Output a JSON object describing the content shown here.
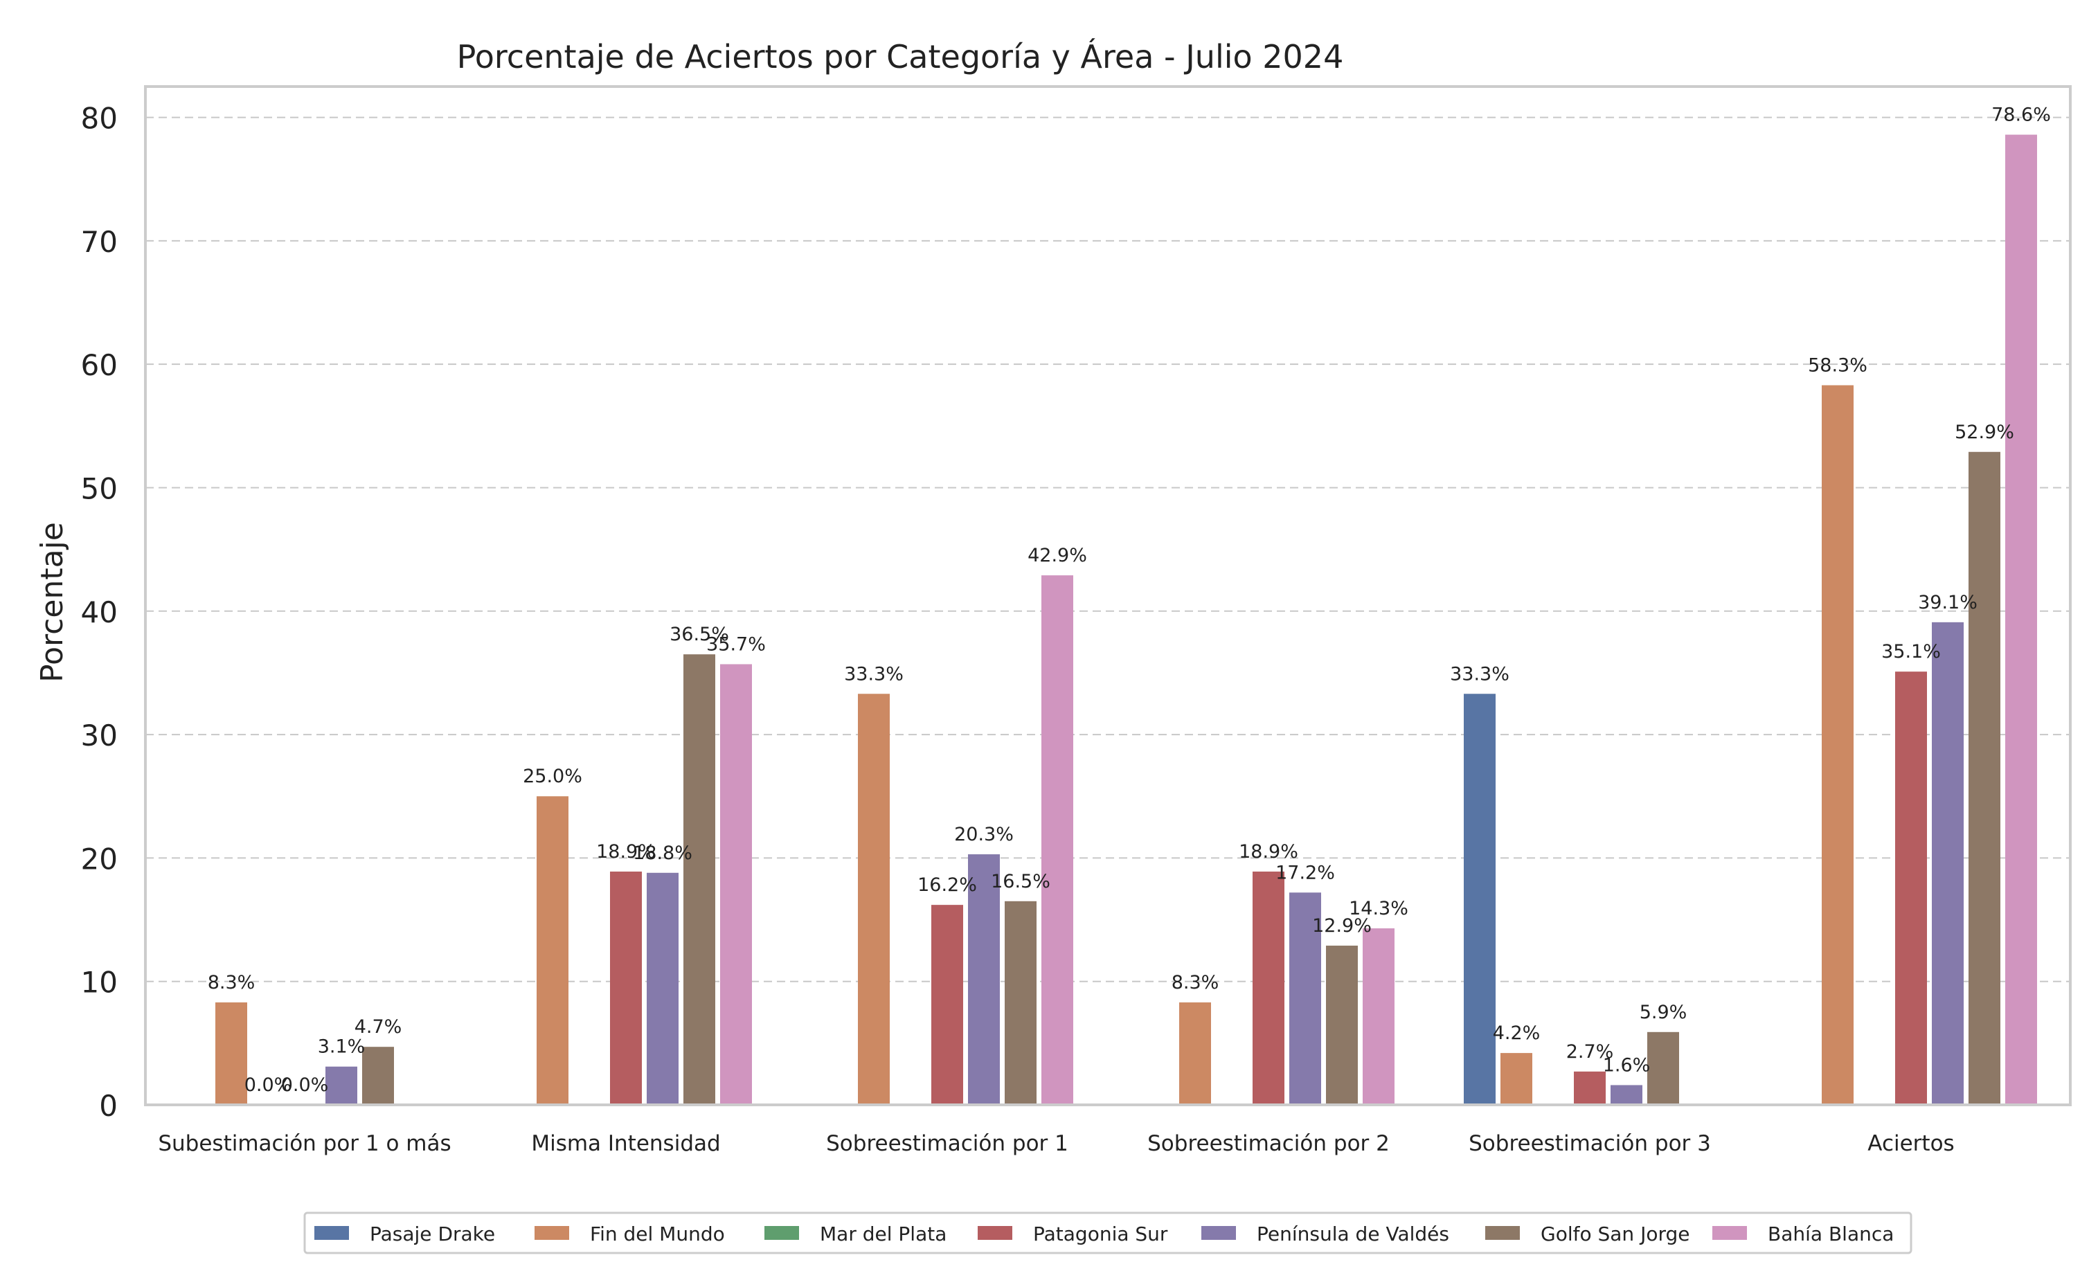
{
  "chart_data": {
    "type": "bar",
    "title": "Porcentaje de Aciertos por Categoría y Área - Julio 2024",
    "xlabel": "",
    "ylabel": "Porcentaje",
    "ylim": [
      0,
      82.5
    ],
    "yticks": [
      0,
      10,
      20,
      30,
      40,
      50,
      60,
      70,
      80
    ],
    "grid": true,
    "legend_position": "bottom-center",
    "categories": [
      "Subestimación por 1 o más",
      "Misma Intensidad",
      "Sobreestimación por 1",
      "Sobreestimación por 2",
      "Sobreestimación por 3",
      "Aciertos"
    ],
    "series": [
      {
        "name": "Pasaje Drake",
        "color": "#5875a4",
        "values": [
          null,
          null,
          null,
          null,
          33.3,
          null
        ],
        "labels": [
          "",
          "",
          "",
          "",
          "33.3%",
          ""
        ]
      },
      {
        "name": "Fin del Mundo",
        "color": "#cc8963",
        "values": [
          8.3,
          25.0,
          33.3,
          8.3,
          4.2,
          58.3
        ],
        "labels": [
          "8.3%",
          "25.0%",
          "33.3%",
          "8.3%",
          "4.2%",
          "58.3%"
        ]
      },
      {
        "name": "Mar del Plata",
        "color": "#5f9e6e",
        "values": [
          0.0,
          null,
          null,
          null,
          null,
          null
        ],
        "labels": [
          "0.0%",
          "",
          "",
          "",
          "",
          ""
        ]
      },
      {
        "name": "Patagonia Sur",
        "color": "#b55d60",
        "values": [
          0.0,
          18.9,
          16.2,
          18.9,
          2.7,
          35.1
        ],
        "labels": [
          "0.0%",
          "18.9%",
          "16.2%",
          "18.9%",
          "2.7%",
          "35.1%"
        ]
      },
      {
        "name": "Península de Valdés",
        "color": "#857aab",
        "values": [
          3.1,
          18.8,
          20.3,
          17.2,
          1.6,
          39.1
        ],
        "labels": [
          "3.1%",
          "18.8%",
          "20.3%",
          "17.2%",
          "1.6%",
          "39.1%"
        ]
      },
      {
        "name": "Golfo San Jorge",
        "color": "#8d7866",
        "values": [
          4.7,
          36.5,
          16.5,
          12.9,
          5.9,
          52.9
        ],
        "labels": [
          "4.7%",
          "36.5%",
          "16.5%",
          "12.9%",
          "5.9%",
          "52.9%"
        ]
      },
      {
        "name": "Bahía Blanca",
        "color": "#d095bf",
        "values": [
          null,
          35.7,
          42.9,
          14.3,
          null,
          78.6
        ],
        "labels": [
          "",
          "35.7%",
          "42.9%",
          "14.3%",
          "",
          "78.6%"
        ]
      }
    ]
  }
}
